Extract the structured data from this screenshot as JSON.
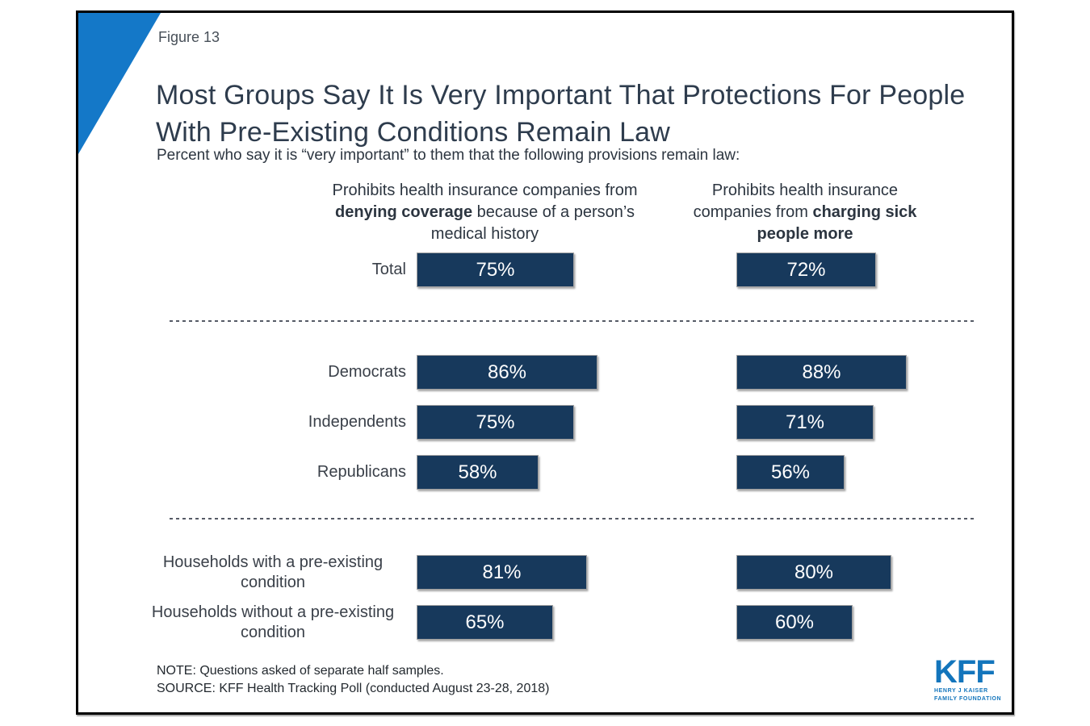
{
  "figure_label": "Figure 13",
  "title": "Most Groups Say It Is Very Important That Protections For People With Pre-Existing Conditions Remain Law",
  "subtitle": "Percent who say it is “very important” to them that the following provisions remain law:",
  "columns": [
    {
      "prefix": "Prohibits health insurance companies from ",
      "bold": "denying coverage",
      "suffix": " because of a person’s medical history"
    },
    {
      "prefix": "Prohibits health insurance companies from ",
      "bold": "charging sick people more",
      "suffix": ""
    }
  ],
  "rows": [
    {
      "label": "Total",
      "left_value": 75,
      "left_label": "75%",
      "right_value": 72,
      "right_label": "72%"
    },
    {
      "label": "Democrats",
      "left_value": 86,
      "left_label": "86%",
      "right_value": 88,
      "right_label": "88%"
    },
    {
      "label": "Independents",
      "left_value": 75,
      "left_label": "75%",
      "right_value": 71,
      "right_label": "71%"
    },
    {
      "label": "Republicans",
      "left_value": 58,
      "left_label": "58%",
      "right_value": 56,
      "right_label": "56%"
    },
    {
      "label": "Households with a pre-existing condition",
      "left_value": 81,
      "left_label": "81%",
      "right_value": 80,
      "right_label": "80%"
    },
    {
      "label": "Households without a pre-existing condition",
      "left_value": 65,
      "left_label": "65%",
      "right_value": 60,
      "right_label": "60%"
    }
  ],
  "note": "NOTE: Questions asked of separate half samples.",
  "source": "SOURCE: KFF Health Tracking Poll (conducted August 23-28, 2018)",
  "logo": {
    "text": "KFF",
    "sub_line1": "HENRY J KAISER",
    "sub_line2": "FAMILY FOUNDATION"
  },
  "colors": {
    "bar": "#17395c",
    "triangle": "#1478c8",
    "logo_blue": "#1375bc"
  },
  "chart_data": {
    "type": "bar",
    "orientation": "horizontal",
    "title": "Most Groups Say It Is Very Important That Protections For People With Pre-Existing Conditions Remain Law",
    "subtitle": "Percent who say it is “very important” to them that the following provisions remain law:",
    "categories": [
      "Total",
      "Democrats",
      "Independents",
      "Republicans",
      "Households with a pre-existing condition",
      "Households without a pre-existing condition"
    ],
    "series": [
      {
        "name": "Prohibits health insurance companies from denying coverage because of a person’s medical history",
        "values": [
          75,
          86,
          75,
          58,
          81,
          65
        ]
      },
      {
        "name": "Prohibits health insurance companies from charging sick people more",
        "values": [
          72,
          88,
          71,
          56,
          80,
          60
        ]
      }
    ],
    "unit": "%",
    "xlim": [
      0,
      100
    ],
    "data_labels": true,
    "group_dividers_after": [
      "Total",
      "Republicans"
    ],
    "note": "NOTE: Questions asked of separate half samples.",
    "source": "SOURCE: KFF Health Tracking Poll (conducted August 23-28, 2018)"
  }
}
